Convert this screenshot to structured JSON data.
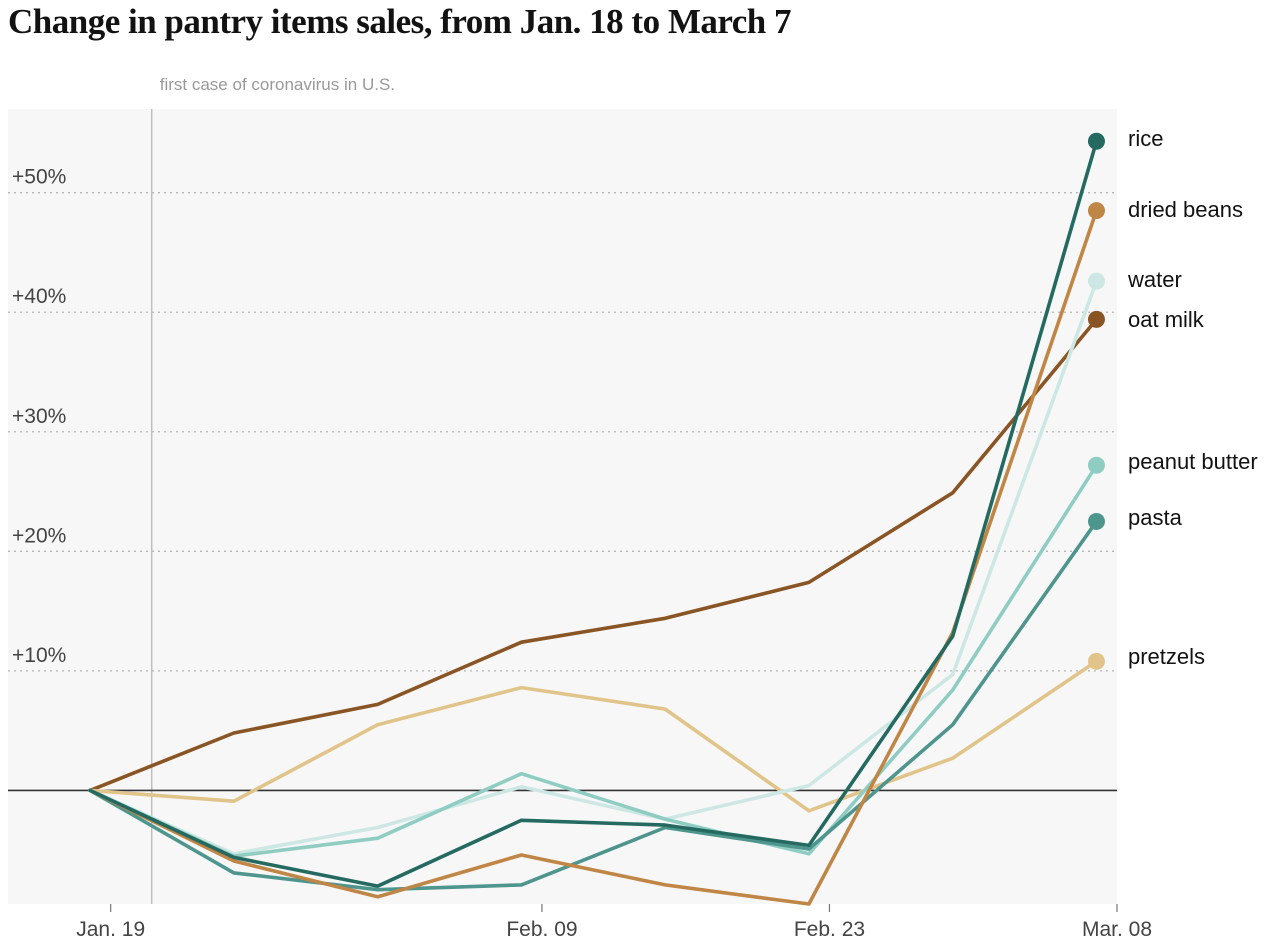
{
  "chart_data": {
    "type": "line",
    "title": "Change in pantry items sales, from Jan. 18 to March 7",
    "annotation": "first case of coronavirus in U.S.",
    "x": [
      "2020-01-18",
      "2020-01-25",
      "2020-02-01",
      "2020-02-08",
      "2020-02-15",
      "2020-02-22",
      "2020-02-29",
      "2020-03-07"
    ],
    "x_tick_labels": [
      "Jan. 19",
      "Feb. 09",
      "Feb. 23",
      "Mar. 08"
    ],
    "x_tick_dates": [
      "2020-01-19",
      "2020-02-09",
      "2020-02-23",
      "2020-03-08"
    ],
    "annotation_date": "2020-01-21",
    "xlim": [
      "2020-01-14",
      "2020-03-08"
    ],
    "ylim": [
      -9.5,
      57
    ],
    "y_ticks": [
      10,
      20,
      30,
      40,
      50
    ],
    "y_tick_labels": [
      "+10%",
      "+20%",
      "+30%",
      "+40%",
      "+50%"
    ],
    "ylabel": "",
    "xlabel": "",
    "grid": "horizontal dotted",
    "legend": "direct labels at right",
    "series": [
      {
        "name": "oat milk",
        "color": "#8a5524",
        "values": [
          0,
          4.8,
          7.2,
          12.4,
          14.4,
          17.4,
          24.9,
          39.4
        ]
      },
      {
        "name": "pretzels",
        "color": "#e0c48a",
        "values": [
          0,
          -0.9,
          5.5,
          8.6,
          6.8,
          -1.7,
          2.7,
          10.8
        ]
      },
      {
        "name": "water",
        "color": "#cde8e4",
        "values": [
          0,
          -5.3,
          -3.1,
          0.3,
          -2.4,
          0.4,
          9.7,
          42.6
        ]
      },
      {
        "name": "peanut butter",
        "color": "#8fcdc3",
        "values": [
          0,
          -5.5,
          -4.0,
          1.4,
          -2.4,
          -5.3,
          8.4,
          27.2
        ]
      },
      {
        "name": "pasta",
        "color": "#4e958e",
        "values": [
          0,
          -6.9,
          -8.3,
          -7.9,
          -3.1,
          -4.9,
          5.5,
          22.5
        ]
      },
      {
        "name": "dried beans",
        "color": "#bf8646",
        "values": [
          0,
          -5.9,
          -8.9,
          -5.4,
          -7.9,
          -9.5,
          13.2,
          48.5
        ]
      },
      {
        "name": "rice",
        "color": "#246a61",
        "values": [
          0,
          -5.6,
          -8.0,
          -2.5,
          -2.9,
          -4.6,
          12.9,
          54.3
        ]
      }
    ]
  }
}
